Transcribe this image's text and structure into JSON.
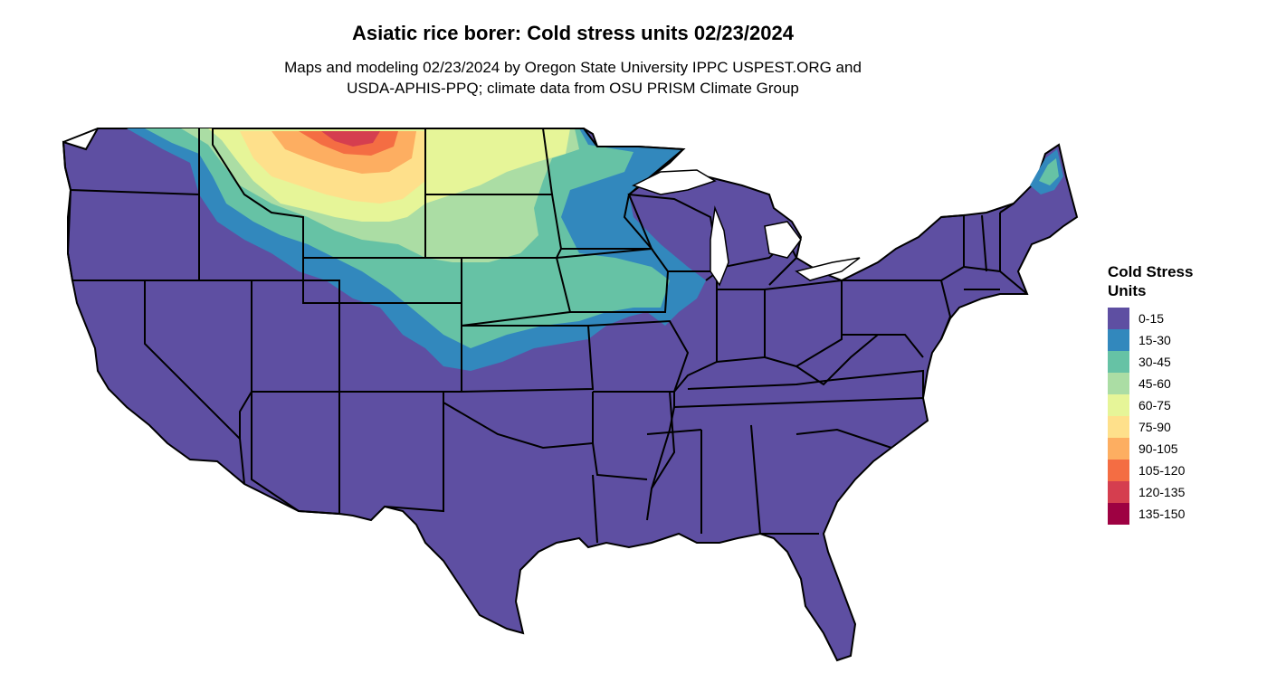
{
  "title": "Asiatic rice borer: Cold stress units 02/23/2024",
  "subtitle_line1": "Maps and modeling 02/23/2024 by Oregon State University IPPC USPEST.ORG and",
  "subtitle_line2": "USDA-APHIS-PPQ; climate data from OSU PRISM Climate Group",
  "legend": {
    "title": "Cold Stress\nUnits",
    "items": [
      {
        "label": "0-15",
        "color": "#5E4FA2"
      },
      {
        "label": "15-30",
        "color": "#3288BD"
      },
      {
        "label": "30-45",
        "color": "#66C2A5"
      },
      {
        "label": "45-60",
        "color": "#ABDDA4"
      },
      {
        "label": "60-75",
        "color": "#E6F598"
      },
      {
        "label": "75-90",
        "color": "#FEE08B"
      },
      {
        "label": "90-105",
        "color": "#FDAE61"
      },
      {
        "label": "105-120",
        "color": "#F46D43"
      },
      {
        "label": "120-135",
        "color": "#D53E4F"
      },
      {
        "label": "135-150",
        "color": "#9E0142"
      }
    ]
  }
}
